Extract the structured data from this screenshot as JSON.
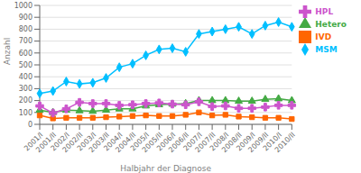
{
  "chart_data": {
    "type": "line",
    "categories": [
      "2001/I",
      "2001/II",
      "2002/I",
      "2002/II",
      "2003/I",
      "2003/II",
      "2004/I",
      "2004/II",
      "2005/I",
      "2005/II",
      "2006/I",
      "2006/II",
      "2007/I",
      "2007/II",
      "2008/I",
      "2008/II",
      "2009/I",
      "2009/II",
      "2010/I",
      "2010/II"
    ],
    "series": [
      {
        "name": "MSM",
        "color": "#00BFFF",
        "marker": "diamond",
        "values": [
          260,
          280,
          360,
          340,
          350,
          390,
          480,
          510,
          580,
          630,
          640,
          610,
          760,
          780,
          800,
          820,
          760,
          830,
          860,
          820
        ]
      },
      {
        "name": "IVD",
        "color": "#FF6600",
        "marker": "square",
        "values": [
          75,
          50,
          55,
          55,
          55,
          60,
          65,
          70,
          75,
          70,
          70,
          80,
          100,
          75,
          80,
          65,
          60,
          55,
          55,
          45
        ]
      },
      {
        "name": "Hetero",
        "color": "#44AA44",
        "marker": "triangle",
        "values": [
          120,
          100,
          120,
          115,
          110,
          120,
          130,
          130,
          155,
          165,
          170,
          175,
          200,
          200,
          200,
          195,
          195,
          210,
          215,
          200
        ]
      },
      {
        "name": "HPL",
        "color": "#CC55CC",
        "marker": "cross",
        "values": [
          155,
          95,
          130,
          185,
          175,
          175,
          160,
          165,
          175,
          180,
          170,
          165,
          190,
          150,
          155,
          135,
          135,
          145,
          160,
          160
        ]
      }
    ],
    "xlabel": "Halbjahr der Diagnose",
    "ylabel": "Anzahl",
    "ylim": [
      0,
      1000
    ],
    "yticks": [
      0,
      100,
      200,
      300,
      400,
      500,
      600,
      700,
      800,
      900,
      1000
    ],
    "grid": true,
    "legend": "right"
  }
}
